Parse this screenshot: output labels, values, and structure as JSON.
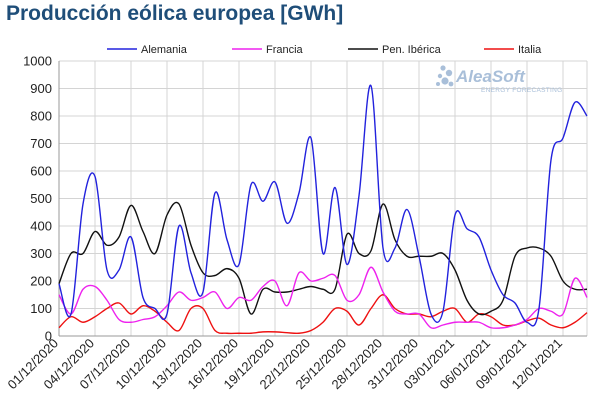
{
  "chart_data": {
    "type": "line",
    "title": "Producción eólica europea [GWh]",
    "xlabel": "",
    "ylabel": "",
    "ylim": [
      0,
      1000
    ],
    "yticks": [
      0,
      100,
      200,
      300,
      400,
      500,
      600,
      700,
      800,
      900,
      1000
    ],
    "grid": true,
    "legend_position": "top",
    "x": [
      "01/12/2020",
      "02/12/2020",
      "03/12/2020",
      "04/12/2020",
      "05/12/2020",
      "06/12/2020",
      "07/12/2020",
      "08/12/2020",
      "09/12/2020",
      "10/12/2020",
      "11/12/2020",
      "12/12/2020",
      "13/12/2020",
      "14/12/2020",
      "15/12/2020",
      "16/12/2020",
      "17/12/2020",
      "18/12/2020",
      "19/12/2020",
      "20/12/2020",
      "21/12/2020",
      "22/12/2020",
      "23/12/2020",
      "24/12/2020",
      "25/12/2020",
      "26/12/2020",
      "27/12/2020",
      "28/12/2020",
      "29/12/2020",
      "30/12/2020",
      "31/12/2020",
      "01/01/2021",
      "02/01/2021",
      "03/01/2021",
      "04/01/2021",
      "05/01/2021",
      "06/01/2021",
      "07/01/2021",
      "08/01/2021",
      "09/01/2021",
      "10/01/2021",
      "11/01/2021",
      "12/01/2021",
      "13/01/2021",
      "14/01/2021"
    ],
    "xtick_labels": [
      "01/12/2020",
      "04/12/2020",
      "07/12/2020",
      "10/12/2020",
      "13/12/2020",
      "16/12/2020",
      "19/12/2020",
      "22/12/2020",
      "25/12/2020",
      "28/12/2020",
      "31/12/2020",
      "03/01/2021",
      "06/01/2021",
      "09/01/2021",
      "12/01/2021"
    ],
    "series": [
      {
        "name": "Alemania",
        "color": "#2222dd",
        "values": [
          190,
          80,
          480,
          580,
          240,
          240,
          360,
          140,
          100,
          80,
          400,
          230,
          160,
          520,
          350,
          260,
          550,
          490,
          560,
          410,
          520,
          720,
          300,
          540,
          260,
          510,
          910,
          320,
          320,
          460,
          290,
          80,
          90,
          440,
          390,
          360,
          240,
          150,
          120,
          50,
          100,
          640,
          720,
          850,
          800
        ]
      },
      {
        "name": "Francia",
        "color": "#ee22ee",
        "values": [
          150,
          80,
          170,
          180,
          130,
          60,
          50,
          60,
          70,
          110,
          160,
          130,
          140,
          160,
          100,
          140,
          130,
          180,
          200,
          110,
          230,
          200,
          210,
          220,
          130,
          150,
          250,
          160,
          90,
          80,
          80,
          30,
          40,
          50,
          50,
          50,
          30,
          30,
          40,
          60,
          100,
          90,
          80,
          210,
          140
        ]
      },
      {
        "name": "Pen. Ibérica",
        "color": "#111111",
        "values": [
          190,
          300,
          300,
          380,
          330,
          360,
          475,
          380,
          300,
          440,
          480,
          330,
          230,
          220,
          245,
          210,
          80,
          170,
          160,
          160,
          170,
          180,
          170,
          170,
          370,
          300,
          310,
          480,
          350,
          290,
          290,
          290,
          300,
          240,
          130,
          80,
          90,
          130,
          290,
          320,
          320,
          290,
          200,
          170,
          170
        ]
      },
      {
        "name": "Italia",
        "color": "#ee1111",
        "values": [
          30,
          70,
          50,
          70,
          100,
          120,
          80,
          110,
          90,
          50,
          20,
          100,
          100,
          20,
          10,
          10,
          10,
          15,
          15,
          12,
          10,
          20,
          50,
          100,
          90,
          40,
          100,
          150,
          100,
          80,
          80,
          70,
          90,
          100,
          50,
          80,
          70,
          40,
          40,
          55,
          65,
          40,
          30,
          50,
          85
        ]
      }
    ]
  },
  "watermark": {
    "name": "AleaSoft",
    "tagline": "ENERGY FORECASTING",
    "color": "#a9bfd9"
  }
}
